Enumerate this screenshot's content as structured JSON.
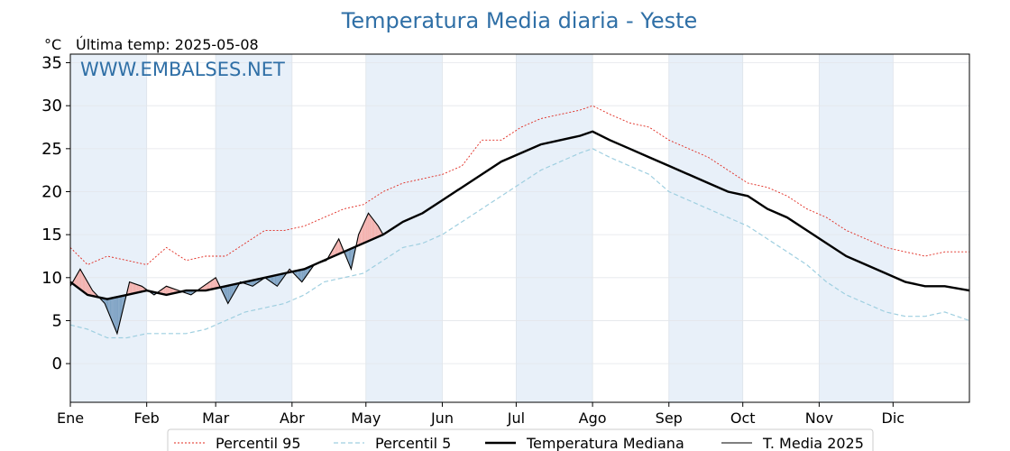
{
  "title": "Temperatura Media diaria - Yeste",
  "unit_label": "°C",
  "last_temp_label": "Última temp: 2025-05-08",
  "watermark": "WWW.EMBALSES.NET",
  "colors": {
    "title": "#2f6fa6",
    "p95": "#e0281e",
    "p5": "#9fcfe0",
    "median": "#000000",
    "t2025": "#000000",
    "warm_fill": "#f4b3b0",
    "cold_fill": "#7fa3c4",
    "band": "#e8f0f9"
  },
  "legend": [
    {
      "label": "Percentil 95",
      "style": "p95"
    },
    {
      "label": "Percentil 5",
      "style": "p5"
    },
    {
      "label": "Temperatura Mediana",
      "style": "median"
    },
    {
      "label": "T. Media 2025",
      "style": "t2025"
    }
  ],
  "chart_data": {
    "type": "line",
    "title": "Temperatura Media diaria - Yeste",
    "ylabel": "°C",
    "ylim": [
      -4.5,
      36
    ],
    "yticks": [
      0,
      5,
      10,
      15,
      20,
      25,
      30,
      35
    ],
    "xlim": [
      1,
      366
    ],
    "months": [
      {
        "label": "Ene",
        "day": 1
      },
      {
        "label": "Feb",
        "day": 32
      },
      {
        "label": "Mar",
        "day": 60
      },
      {
        "label": "Abr",
        "day": 91
      },
      {
        "label": "May",
        "day": 121
      },
      {
        "label": "Jun",
        "day": 152
      },
      {
        "label": "Jul",
        "day": 182
      },
      {
        "label": "Ago",
        "day": 213
      },
      {
        "label": "Sep",
        "day": 244
      },
      {
        "label": "Oct",
        "day": 274
      },
      {
        "label": "Nov",
        "day": 305
      },
      {
        "label": "Dic",
        "day": 335
      }
    ],
    "shaded_months": [
      "Ene",
      "Mar",
      "May",
      "Jul",
      "Sep",
      "Nov"
    ],
    "grid": true,
    "legend_position": "bottom",
    "series": [
      {
        "name": "Percentil 95",
        "x": [
          1,
          8,
          16,
          24,
          32,
          40,
          48,
          56,
          64,
          72,
          80,
          88,
          96,
          104,
          112,
          120,
          128,
          136,
          144,
          152,
          160,
          168,
          176,
          184,
          192,
          200,
          208,
          213,
          220,
          228,
          236,
          244,
          252,
          260,
          268,
          276,
          284,
          292,
          300,
          308,
          316,
          324,
          332,
          340,
          348,
          356,
          366
        ],
        "y": [
          13.5,
          11.5,
          12.5,
          12,
          11.5,
          13.5,
          12,
          12.5,
          12.5,
          14,
          15.5,
          15.5,
          16,
          17,
          18,
          18.5,
          20,
          21,
          21.5,
          22,
          23,
          26,
          26,
          27.5,
          28.5,
          29,
          29.5,
          30,
          29,
          28,
          27.5,
          26,
          25,
          24,
          22.5,
          21,
          20.5,
          19.5,
          18,
          17,
          15.5,
          14.5,
          13.5,
          13,
          12.5,
          13,
          13
        ]
      },
      {
        "name": "Percentil 5",
        "x": [
          1,
          8,
          16,
          24,
          32,
          40,
          48,
          56,
          64,
          72,
          80,
          88,
          96,
          104,
          112,
          120,
          128,
          136,
          144,
          152,
          160,
          168,
          176,
          184,
          192,
          200,
          208,
          213,
          220,
          228,
          236,
          244,
          252,
          260,
          268,
          276,
          284,
          292,
          300,
          308,
          316,
          324,
          332,
          340,
          348,
          356,
          366
        ],
        "y": [
          4.5,
          4,
          3,
          3,
          3.5,
          3.5,
          3.5,
          4,
          5,
          6,
          6.5,
          7,
          8,
          9.5,
          10,
          10.5,
          12,
          13.5,
          14,
          15,
          16.5,
          18,
          19.5,
          21,
          22.5,
          23.5,
          24.5,
          25,
          24,
          23,
          22,
          20,
          19,
          18,
          17,
          16,
          14.5,
          13,
          11.5,
          9.5,
          8,
          7,
          6,
          5.5,
          5.5,
          6,
          5
        ]
      },
      {
        "name": "Temperatura Mediana",
        "x": [
          1,
          8,
          16,
          24,
          32,
          40,
          48,
          56,
          64,
          72,
          80,
          88,
          96,
          104,
          112,
          120,
          128,
          136,
          144,
          152,
          160,
          168,
          176,
          184,
          192,
          200,
          208,
          213,
          220,
          228,
          236,
          244,
          252,
          260,
          268,
          276,
          284,
          292,
          300,
          308,
          316,
          324,
          332,
          340,
          348,
          356,
          366
        ],
        "y": [
          9.5,
          8,
          7.5,
          8,
          8.5,
          8,
          8.5,
          8.5,
          9,
          9.5,
          10,
          10.5,
          11,
          12,
          13,
          14,
          15,
          16.5,
          17.5,
          19,
          20.5,
          22,
          23.5,
          24.5,
          25.5,
          26,
          26.5,
          27,
          26,
          25,
          24,
          23,
          22,
          21,
          20,
          19.5,
          18,
          17,
          15.5,
          14,
          12.5,
          11.5,
          10.5,
          9.5,
          9,
          9,
          8.5
        ]
      },
      {
        "name": "T. Media 2025",
        "x": [
          1,
          5,
          10,
          15,
          20,
          25,
          30,
          35,
          40,
          45,
          50,
          55,
          60,
          65,
          70,
          75,
          80,
          85,
          90,
          95,
          100,
          105,
          110,
          115,
          118,
          122,
          126,
          128
        ],
        "y": [
          9,
          11,
          8.5,
          7,
          3.5,
          9.5,
          9,
          8,
          9,
          8.5,
          8,
          9,
          10,
          7,
          9.5,
          9,
          10,
          9,
          11,
          9.5,
          11.5,
          12,
          14.5,
          11,
          15,
          17.5,
          16,
          15
        ]
      }
    ]
  }
}
